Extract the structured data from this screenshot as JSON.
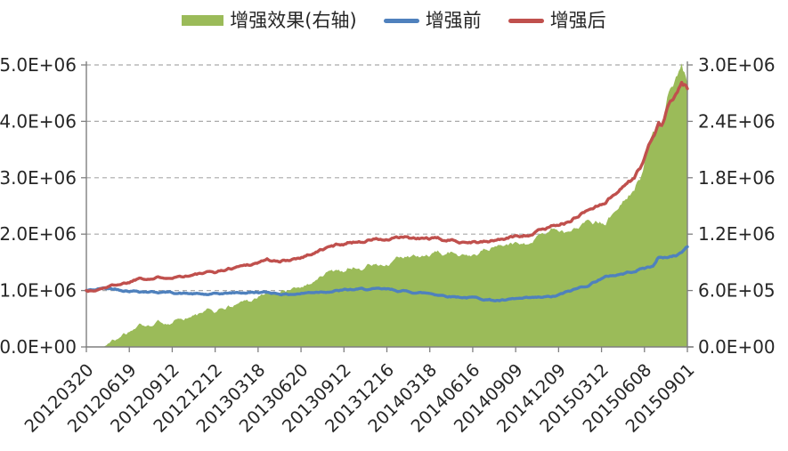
{
  "chart_data": {
    "type": "area-line-combo",
    "title": "",
    "legend_position": "top-center",
    "grid": "horizontal-dashed",
    "background_color": "#ffffff",
    "axis_line_color": "#7f7f7f",
    "gridline_color": "#a9a9a9",
    "label_color": "#262626",
    "left_axis": {
      "min": 0,
      "max": 5000000,
      "ticks": [
        "0.0E+00",
        "1.0E+06",
        "2.0E+06",
        "3.0E+06",
        "4.0E+06",
        "5.0E+06"
      ],
      "tick_values": [
        0,
        1000000,
        2000000,
        3000000,
        4000000,
        5000000
      ]
    },
    "right_axis": {
      "min": 0,
      "max": 3000000,
      "ticks": [
        "0.0E+00",
        "6.0E+05",
        "1.2E+06",
        "1.8E+06",
        "2.4E+06",
        "3.0E+06"
      ],
      "tick_values": [
        0,
        600000,
        1200000,
        1800000,
        2400000,
        3000000
      ]
    },
    "x_axis": {
      "labels": [
        "20120320",
        "20120619",
        "20120912",
        "20121212",
        "20130318",
        "20130620",
        "20130912",
        "20131216",
        "20140318",
        "20140616",
        "20140909",
        "20141209",
        "20150312",
        "20150608",
        "20150901"
      ],
      "label_rotation_deg": -45
    },
    "legend": [
      {
        "label": "增强效果(右轴)",
        "color": "#9BBB59",
        "swatch": "area"
      },
      {
        "label": "增强前",
        "color": "#4F81BD",
        "swatch": "line"
      },
      {
        "label": "增强后",
        "color": "#C0504D",
        "swatch": "line"
      }
    ],
    "series": [
      {
        "name": "增强效果(右轴)",
        "type": "area",
        "axis": "right",
        "color": "#9BBB59",
        "note": "cumulative enhancement = 增强后 minus 增强前, plotted on right axis",
        "values_at_x_labels": [
          0,
          150000,
          295000,
          390000,
          530000,
          650000,
          835000,
          880000,
          970000,
          1005000,
          1115000,
          1315000,
          1340000,
          1810000,
          2780000
        ]
      },
      {
        "name": "增强前",
        "type": "line",
        "axis": "left",
        "color": "#4F81BD",
        "values_at_x_labels": [
          1000000,
          1005000,
          965000,
          930000,
          970000,
          950000,
          1005000,
          1010000,
          950000,
          875000,
          845000,
          885000,
          1210000,
          1390000,
          1780000
        ],
        "keyframes_e6": [
          [
            0,
            1.0
          ],
          [
            0.2,
            1.01
          ],
          [
            0.35,
            1.035
          ],
          [
            0.6,
            1.03
          ],
          [
            1,
            1.005
          ],
          [
            1.5,
            0.985
          ],
          [
            2,
            0.965
          ],
          [
            2.5,
            0.94
          ],
          [
            2.8,
            0.925
          ],
          [
            3,
            0.93
          ],
          [
            3.4,
            0.955
          ],
          [
            4,
            0.97
          ],
          [
            4.4,
            0.955
          ],
          [
            4.7,
            0.935
          ],
          [
            5,
            0.95
          ],
          [
            5.5,
            0.99
          ],
          [
            6,
            1.005
          ],
          [
            6.5,
            1.02
          ],
          [
            7,
            1.01
          ],
          [
            7.4,
            0.985
          ],
          [
            8,
            0.95
          ],
          [
            8.4,
            0.91
          ],
          [
            9,
            0.875
          ],
          [
            9.5,
            0.83
          ],
          [
            9.8,
            0.825
          ],
          [
            10,
            0.845
          ],
          [
            10.4,
            0.855
          ],
          [
            10.9,
            0.885
          ],
          [
            11.1,
            0.94
          ],
          [
            11.4,
            1.02
          ],
          [
            11.7,
            1.1
          ],
          [
            11.93,
            1.2
          ],
          [
            12.2,
            1.26
          ],
          [
            12.57,
            1.31
          ],
          [
            12.92,
            1.39
          ],
          [
            13.2,
            1.43
          ],
          [
            13.32,
            1.6
          ],
          [
            13.45,
            1.565
          ],
          [
            13.6,
            1.6
          ],
          [
            13.75,
            1.63
          ],
          [
            13.9,
            1.7
          ],
          [
            14,
            1.78
          ]
        ]
      },
      {
        "name": "增强后",
        "type": "line",
        "axis": "left",
        "color": "#C0504D",
        "values_at_x_labels": [
          1000000,
          1155000,
          1260000,
          1320000,
          1500000,
          1600000,
          1840000,
          1890000,
          1920000,
          1880000,
          1960000,
          2200000,
          2550000,
          3200000,
          4560000
        ],
        "keyframes_e6": [
          [
            0,
            1.0
          ],
          [
            0.2,
            0.995
          ],
          [
            0.45,
            1.06
          ],
          [
            0.7,
            1.11
          ],
          [
            1,
            1.155
          ],
          [
            1.25,
            1.24
          ],
          [
            1.55,
            1.225
          ],
          [
            2,
            1.26
          ],
          [
            2.5,
            1.285
          ],
          [
            3,
            1.32
          ],
          [
            3.5,
            1.42
          ],
          [
            4,
            1.5
          ],
          [
            4.2,
            1.56
          ],
          [
            4.5,
            1.5
          ],
          [
            5,
            1.6
          ],
          [
            5.5,
            1.73
          ],
          [
            6,
            1.84
          ],
          [
            6.4,
            1.88
          ],
          [
            6.7,
            1.92
          ],
          [
            7,
            1.89
          ],
          [
            7.4,
            1.93
          ],
          [
            7.7,
            1.9
          ],
          [
            8,
            1.92
          ],
          [
            8.4,
            1.88
          ],
          [
            9,
            1.88
          ],
          [
            9.3,
            1.86
          ],
          [
            9.6,
            1.9
          ],
          [
            10,
            1.96
          ],
          [
            10.4,
            2.02
          ],
          [
            10.7,
            2.1
          ],
          [
            11,
            2.2
          ],
          [
            11.26,
            2.21
          ],
          [
            11.5,
            2.36
          ],
          [
            11.93,
            2.52
          ],
          [
            12.2,
            2.65
          ],
          [
            12.5,
            2.87
          ],
          [
            12.75,
            3.0
          ],
          [
            12.92,
            3.2
          ],
          [
            13.1,
            3.55
          ],
          [
            13.33,
            3.95
          ],
          [
            13.42,
            3.9
          ],
          [
            13.54,
            4.26
          ],
          [
            13.75,
            4.47
          ],
          [
            13.87,
            4.62
          ],
          [
            14,
            4.56
          ]
        ]
      }
    ]
  }
}
